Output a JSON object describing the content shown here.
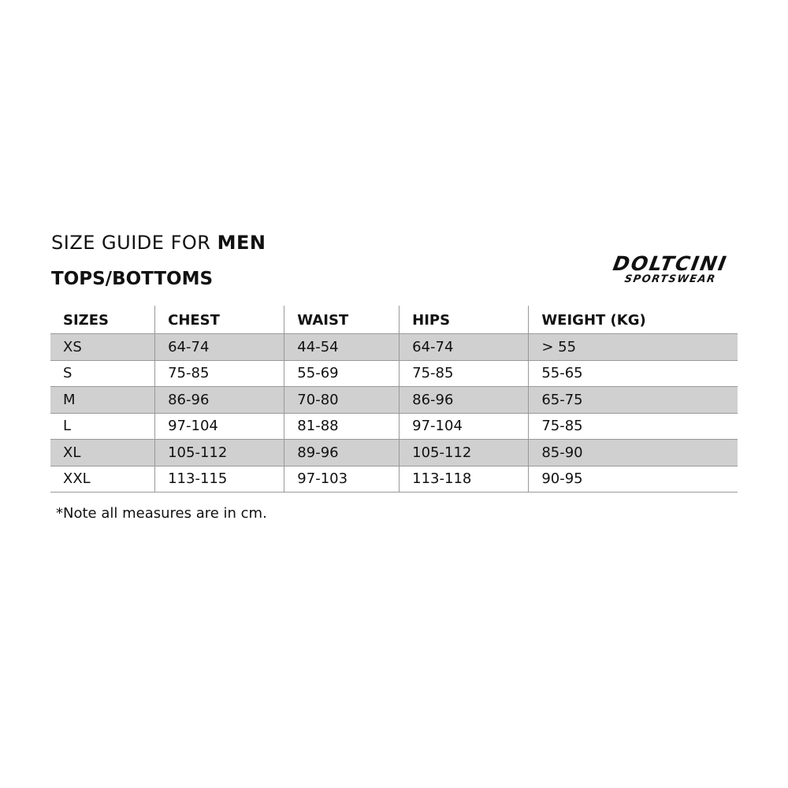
{
  "title": {
    "prefix": "SIZE GUIDE FOR",
    "bold": "MEN"
  },
  "subtitle": "TOPS/BOTTOMS",
  "logo": {
    "line1": "DOLTCINI",
    "line2": "SPORTSWEAR"
  },
  "table": {
    "headers": [
      "SIZES",
      "CHEST",
      "WAIST",
      "HIPS",
      "WEIGHT (KG)"
    ],
    "rows": [
      [
        "XS",
        "64-74",
        "44-54",
        "64-74",
        "> 55"
      ],
      [
        "S",
        "75-85",
        "55-69",
        "75-85",
        "55-65"
      ],
      [
        "M",
        "86-96",
        "70-80",
        "86-96",
        "65-75"
      ],
      [
        "L",
        "97-104",
        "81-88",
        "97-104",
        "75-85"
      ],
      [
        "XL",
        "105-112",
        "89-96",
        "105-112",
        "85-90"
      ],
      [
        "XXL",
        "113-115",
        "97-103",
        "113-118",
        "90-95"
      ]
    ],
    "shaded_row_color": "#d0d0d0"
  },
  "note": "*Note all measures are in cm."
}
